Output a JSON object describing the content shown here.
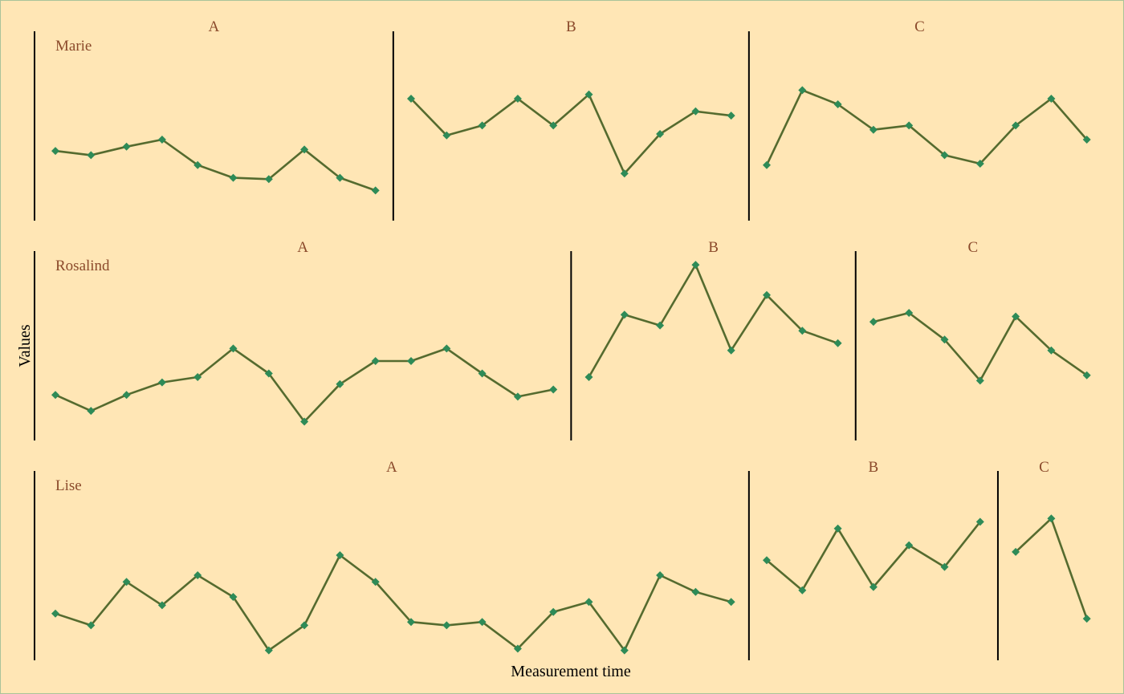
{
  "chart_data": {
    "type": "line",
    "xlabel": "Measurement time",
    "ylabel": "Values",
    "colors": {
      "background": "#FFE6B5",
      "line": "#556B2F",
      "marker": "#2E8B57",
      "label_text": "#8B4A2B"
    },
    "marker": "diamond",
    "ylim": [
      0,
      100
    ],
    "participants": [
      {
        "name": "Marie",
        "phases": [
          {
            "label": "A",
            "values": [
              38,
              35,
              41,
              46,
              28,
              19,
              18,
              39,
              19,
              10
            ]
          },
          {
            "label": "B",
            "values": [
              75,
              49,
              56,
              75,
              56,
              78,
              22,
              50,
              66,
              63
            ]
          },
          {
            "label": "C",
            "values": [
              28,
              81,
              71,
              53,
              56,
              35,
              29,
              56,
              75,
              46
            ]
          }
        ]
      },
      {
        "name": "Rosalind",
        "phases": [
          {
            "label": "A",
            "values": [
              22,
              13,
              22,
              29,
              32,
              48,
              34,
              7,
              28,
              41,
              41,
              48,
              34,
              21,
              25
            ]
          },
          {
            "label": "B",
            "values": [
              32,
              67,
              61,
              95,
              47,
              78,
              58,
              51
            ]
          },
          {
            "label": "C",
            "values": [
              63,
              68,
              53,
              30,
              66,
              47,
              33
            ]
          }
        ]
      },
      {
        "name": "Lise",
        "phases": [
          {
            "label": "A",
            "values": [
              27,
              20,
              46,
              32,
              50,
              37,
              5,
              20,
              62,
              46,
              22,
              20,
              22,
              6,
              28,
              34,
              5,
              50,
              40,
              34
            ]
          },
          {
            "label": "B",
            "values": [
              59,
              41,
              78,
              43,
              68,
              55,
              82
            ]
          },
          {
            "label": "C",
            "values": [
              64,
              84,
              24
            ]
          }
        ]
      }
    ]
  }
}
